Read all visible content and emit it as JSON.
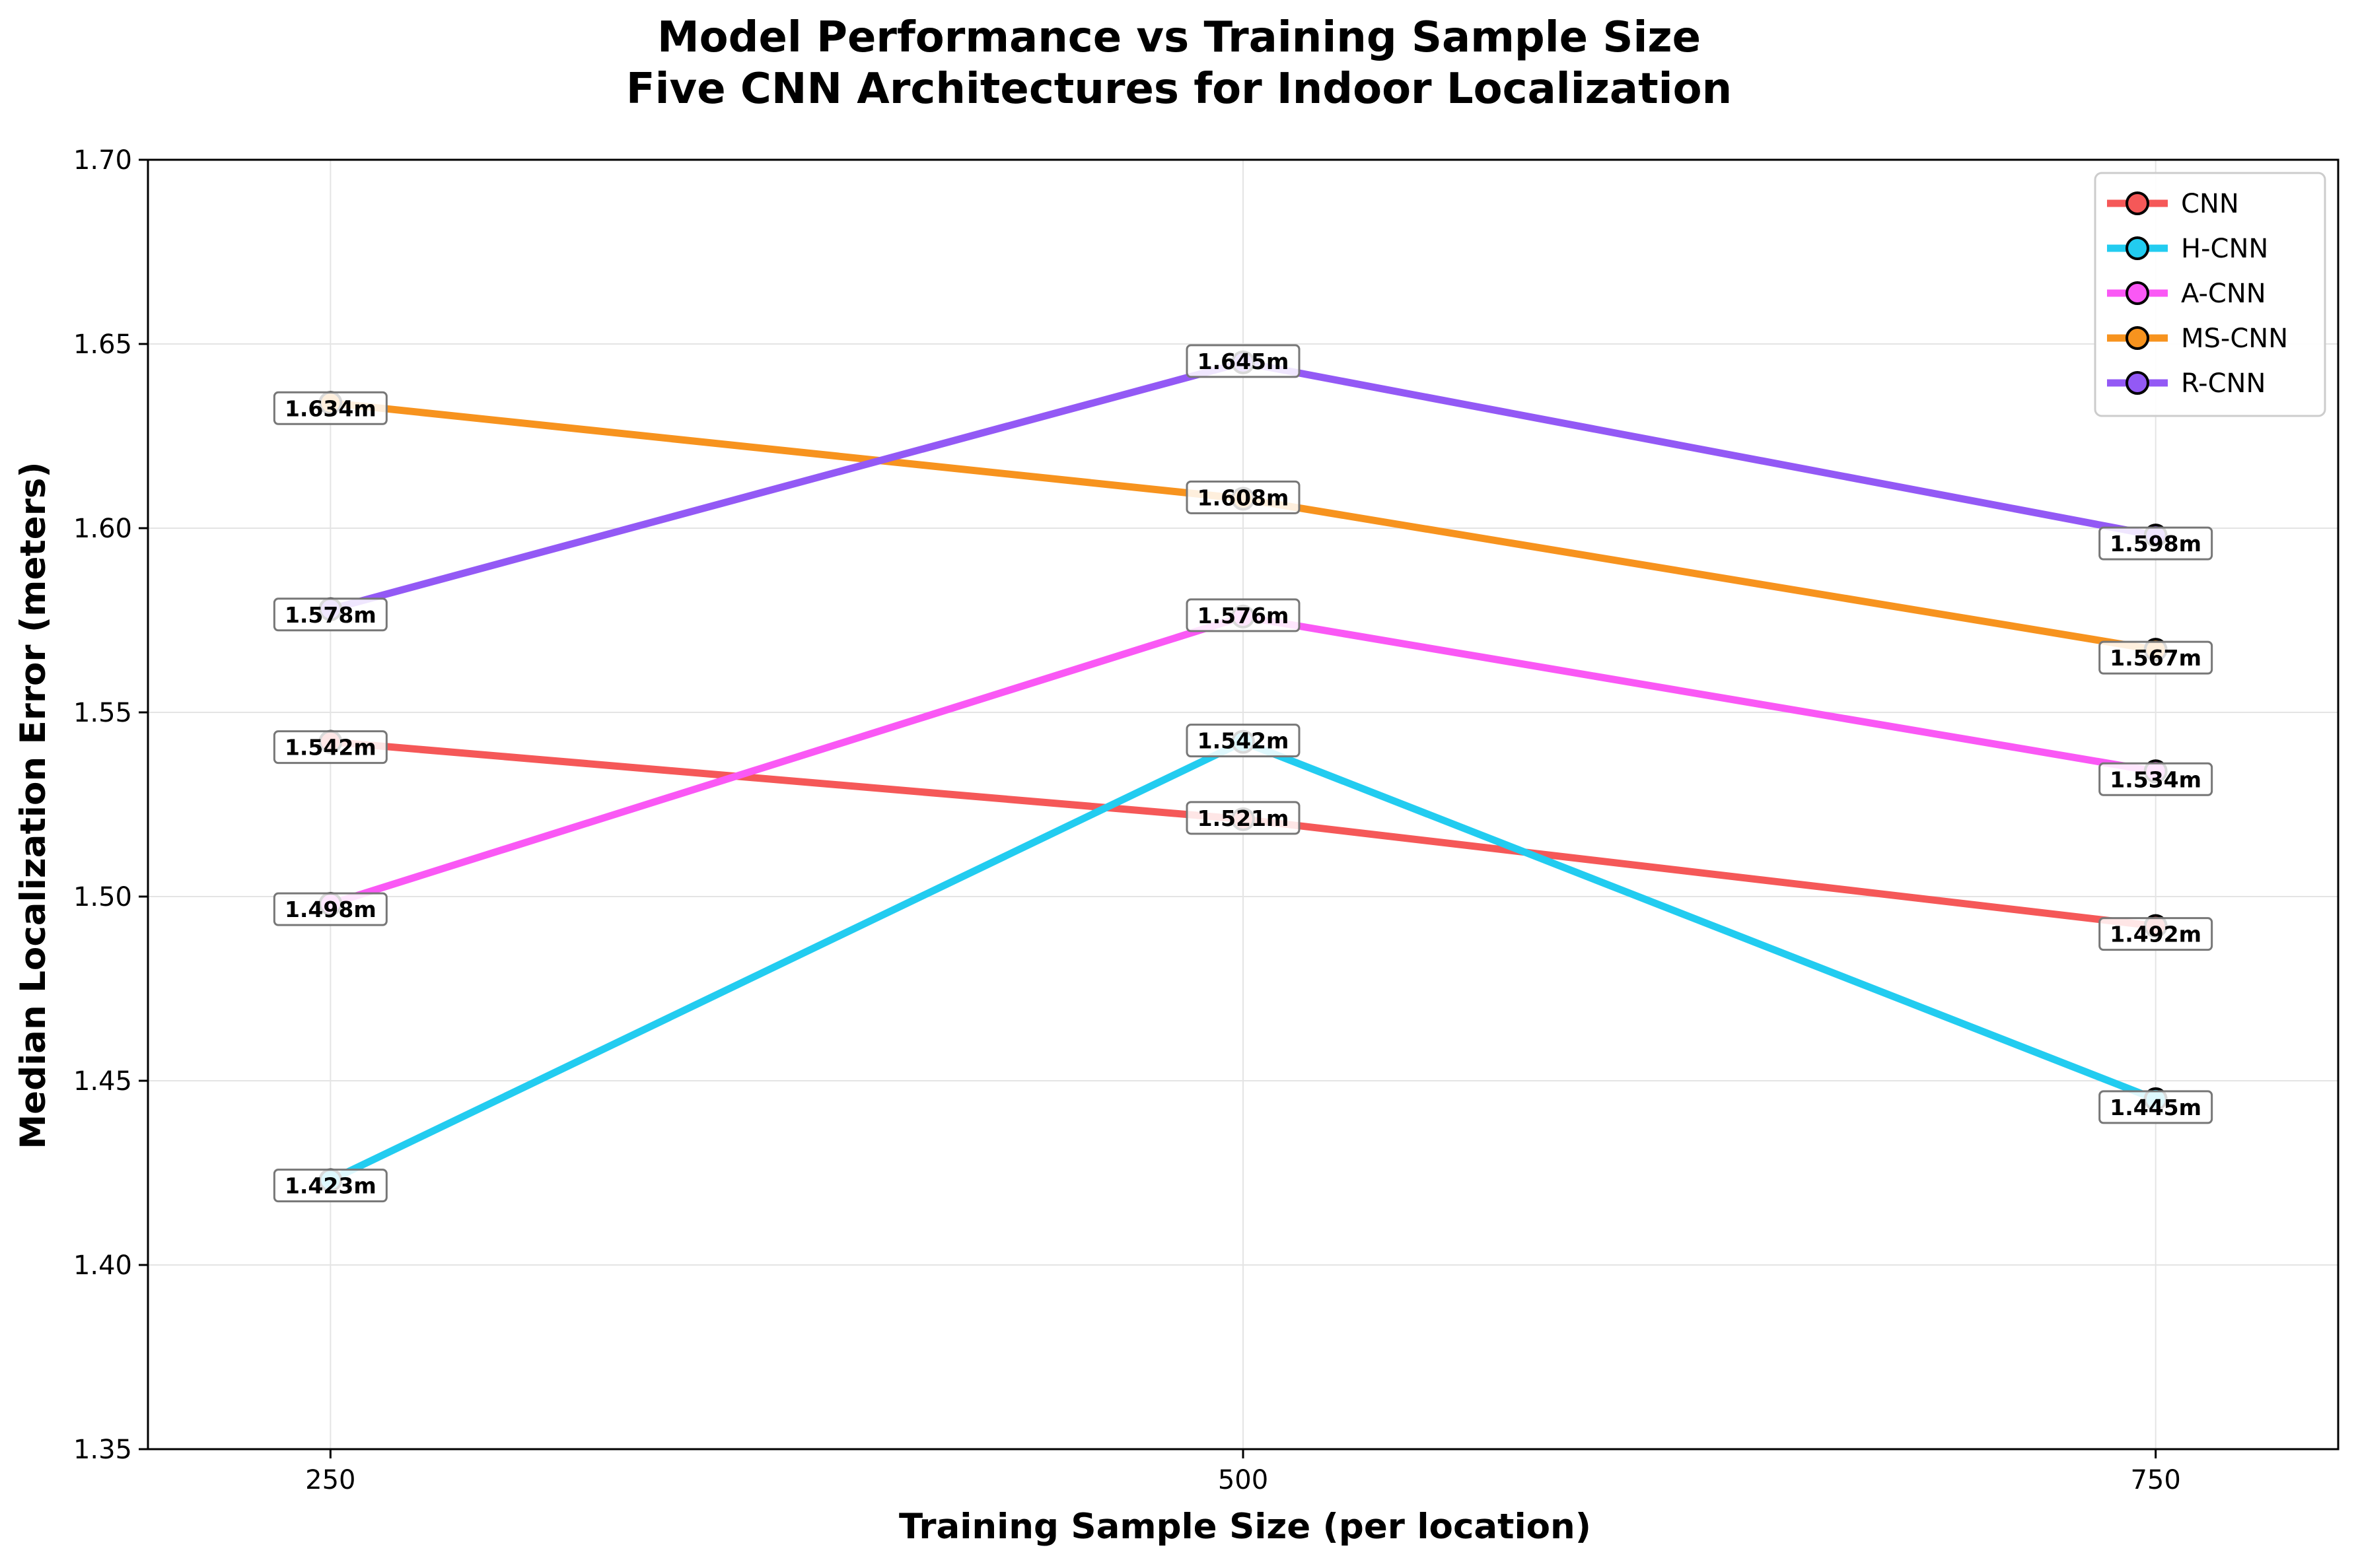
{
  "chart_data": {
    "type": "line",
    "title": "Model Performance vs Training Sample Size",
    "subtitle": "Five CNN Architectures for Indoor Localization",
    "xlabel": "Training Sample Size (per location)",
    "ylabel": "Median Localization Error (meters)",
    "x": [
      250,
      500,
      750
    ],
    "x_tick_labels": [
      "250",
      "500",
      "750"
    ],
    "xlim": [
      200,
      800
    ],
    "ylim": [
      1.35,
      1.7
    ],
    "y_ticks": [
      1.35,
      1.4,
      1.45,
      1.5,
      1.55,
      1.6,
      1.65,
      1.7
    ],
    "y_tick_labels": [
      "1.35",
      "1.40",
      "1.45",
      "1.50",
      "1.55",
      "1.60",
      "1.65",
      "1.70"
    ],
    "grid": true,
    "legend_position": "top-right",
    "series": [
      {
        "name": "CNN",
        "color": "#f55858",
        "values": [
          1.542,
          1.521,
          1.492
        ],
        "labels": [
          "1.542m",
          "1.521m",
          "1.492m"
        ]
      },
      {
        "name": "H-CNN",
        "color": "#22ccf0",
        "values": [
          1.423,
          1.542,
          1.445
        ],
        "labels": [
          "1.423m",
          "1.542m",
          "1.445m"
        ]
      },
      {
        "name": "A-CNN",
        "color": "#fa58f5",
        "values": [
          1.498,
          1.576,
          1.534
        ],
        "labels": [
          "1.498m",
          "1.576m",
          "1.534m"
        ]
      },
      {
        "name": "MS-CNN",
        "color": "#f7931e",
        "values": [
          1.634,
          1.608,
          1.567
        ],
        "labels": [
          "1.634m",
          "1.608m",
          "1.567m"
        ]
      },
      {
        "name": "R-CNN",
        "color": "#9359f5",
        "values": [
          1.578,
          1.645,
          1.598
        ],
        "labels": [
          "1.578m",
          "1.645m",
          "1.598m"
        ]
      }
    ]
  }
}
